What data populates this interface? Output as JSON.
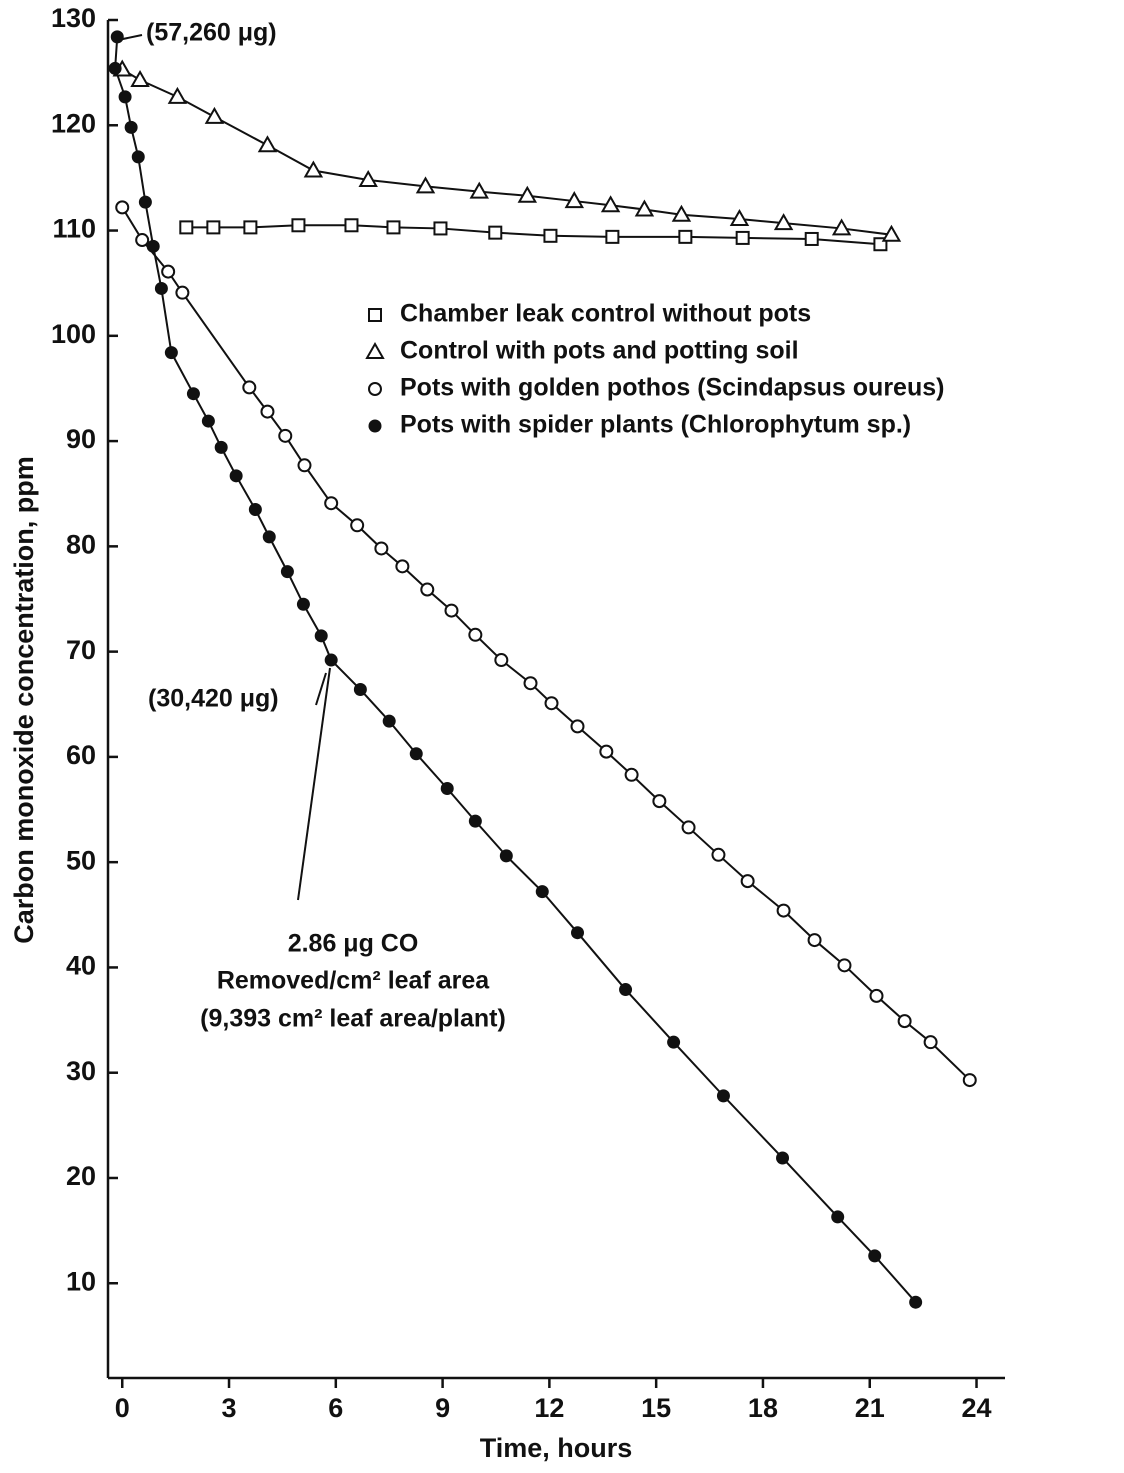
{
  "chart_data": {
    "type": "line",
    "x_label": "Time, hours",
    "y_label": "Carbon monoxide concentration, ppm",
    "xlim": [
      -0.4,
      24.8
    ],
    "ylim": [
      1,
      130
    ],
    "xticks": [
      0,
      3,
      6,
      9,
      12,
      15,
      18,
      21,
      24
    ],
    "yticks": [
      10,
      20,
      30,
      40,
      50,
      60,
      70,
      80,
      90,
      100,
      110,
      120,
      130
    ],
    "series": [
      {
        "name": "Chamber leak control without pots",
        "marker": "square",
        "color": "#111111",
        "x": [
          1.8,
          2.56,
          3.6,
          4.95,
          6.44,
          7.62,
          8.94,
          10.48,
          12.03,
          13.77,
          15.82,
          17.43,
          19.37,
          21.3
        ],
        "values": [
          110.3,
          110.3,
          110.3,
          110.5,
          110.5,
          110.3,
          110.2,
          109.8,
          109.5,
          109.4,
          109.4,
          109.3,
          109.2,
          108.7
        ]
      },
      {
        "name": "Control with pots and potting soil",
        "marker": "triangle",
        "color": "#111111",
        "x": [
          0,
          0.5,
          1.55,
          2.59,
          4.08,
          5.37,
          6.91,
          8.52,
          10.03,
          11.38,
          12.7,
          13.72,
          14.67,
          15.71,
          17.34,
          18.58,
          20.21,
          21.61
        ],
        "values": [
          125.3,
          124.3,
          122.7,
          120.8,
          118.1,
          115.7,
          114.8,
          114.2,
          113.7,
          113.3,
          112.8,
          112.4,
          112.0,
          111.5,
          111.1,
          110.7,
          110.2,
          109.6
        ]
      },
      {
        "name": "Pots with golden pothos (Scindapsus oureus)",
        "marker": "circle-open",
        "color": "#111111",
        "x": [
          0,
          0.56,
          1.29,
          1.69,
          3.57,
          4.08,
          4.58,
          5.12,
          5.87,
          6.6,
          7.28,
          7.87,
          8.57,
          9.25,
          9.92,
          10.65,
          11.47,
          12.06,
          12.79,
          13.6,
          14.31,
          15.09,
          15.91,
          16.75,
          17.57,
          18.58,
          19.45,
          20.29,
          21.19,
          21.98,
          22.71,
          23.81
        ],
        "values": [
          112.2,
          109.1,
          106.1,
          104.1,
          95.1,
          92.8,
          90.5,
          87.7,
          84.1,
          82.0,
          79.8,
          78.1,
          75.9,
          73.9,
          71.6,
          69.2,
          67.0,
          65.1,
          62.9,
          60.5,
          58.3,
          55.8,
          53.3,
          50.7,
          48.2,
          45.4,
          42.6,
          40.2,
          37.3,
          34.9,
          32.9,
          29.3
        ]
      },
      {
        "name": "Pots with spider plants (Chlorophytum sp.)",
        "marker": "circle-filled",
        "color": "#111111",
        "x": [
          -0.14,
          -0.2,
          0.08,
          0.25,
          0.45,
          0.65,
          0.87,
          1.1,
          1.38,
          2.0,
          2.42,
          2.78,
          3.2,
          3.74,
          4.13,
          4.64,
          5.09,
          5.59,
          5.87,
          6.69,
          7.5,
          8.26,
          9.13,
          9.92,
          10.79,
          11.8,
          12.79,
          14.14,
          15.49,
          16.89,
          18.55,
          20.1,
          21.14,
          22.29
        ],
        "values": [
          128.4,
          125.4,
          122.7,
          119.8,
          117.0,
          112.7,
          108.5,
          104.5,
          98.4,
          94.5,
          91.9,
          89.4,
          86.7,
          83.5,
          80.9,
          77.6,
          74.5,
          71.5,
          69.2,
          66.4,
          63.4,
          60.3,
          57.0,
          53.9,
          50.6,
          47.2,
          43.3,
          37.9,
          32.9,
          27.8,
          21.9,
          16.3,
          12.6,
          8.2
        ]
      }
    ],
    "annotations": [
      "(57,260 μg)",
      "(30,420 μg)",
      "2.86 μg CO",
      "Removed/cm² leaf area",
      "(9,393 cm² leaf area/plant)"
    ]
  }
}
